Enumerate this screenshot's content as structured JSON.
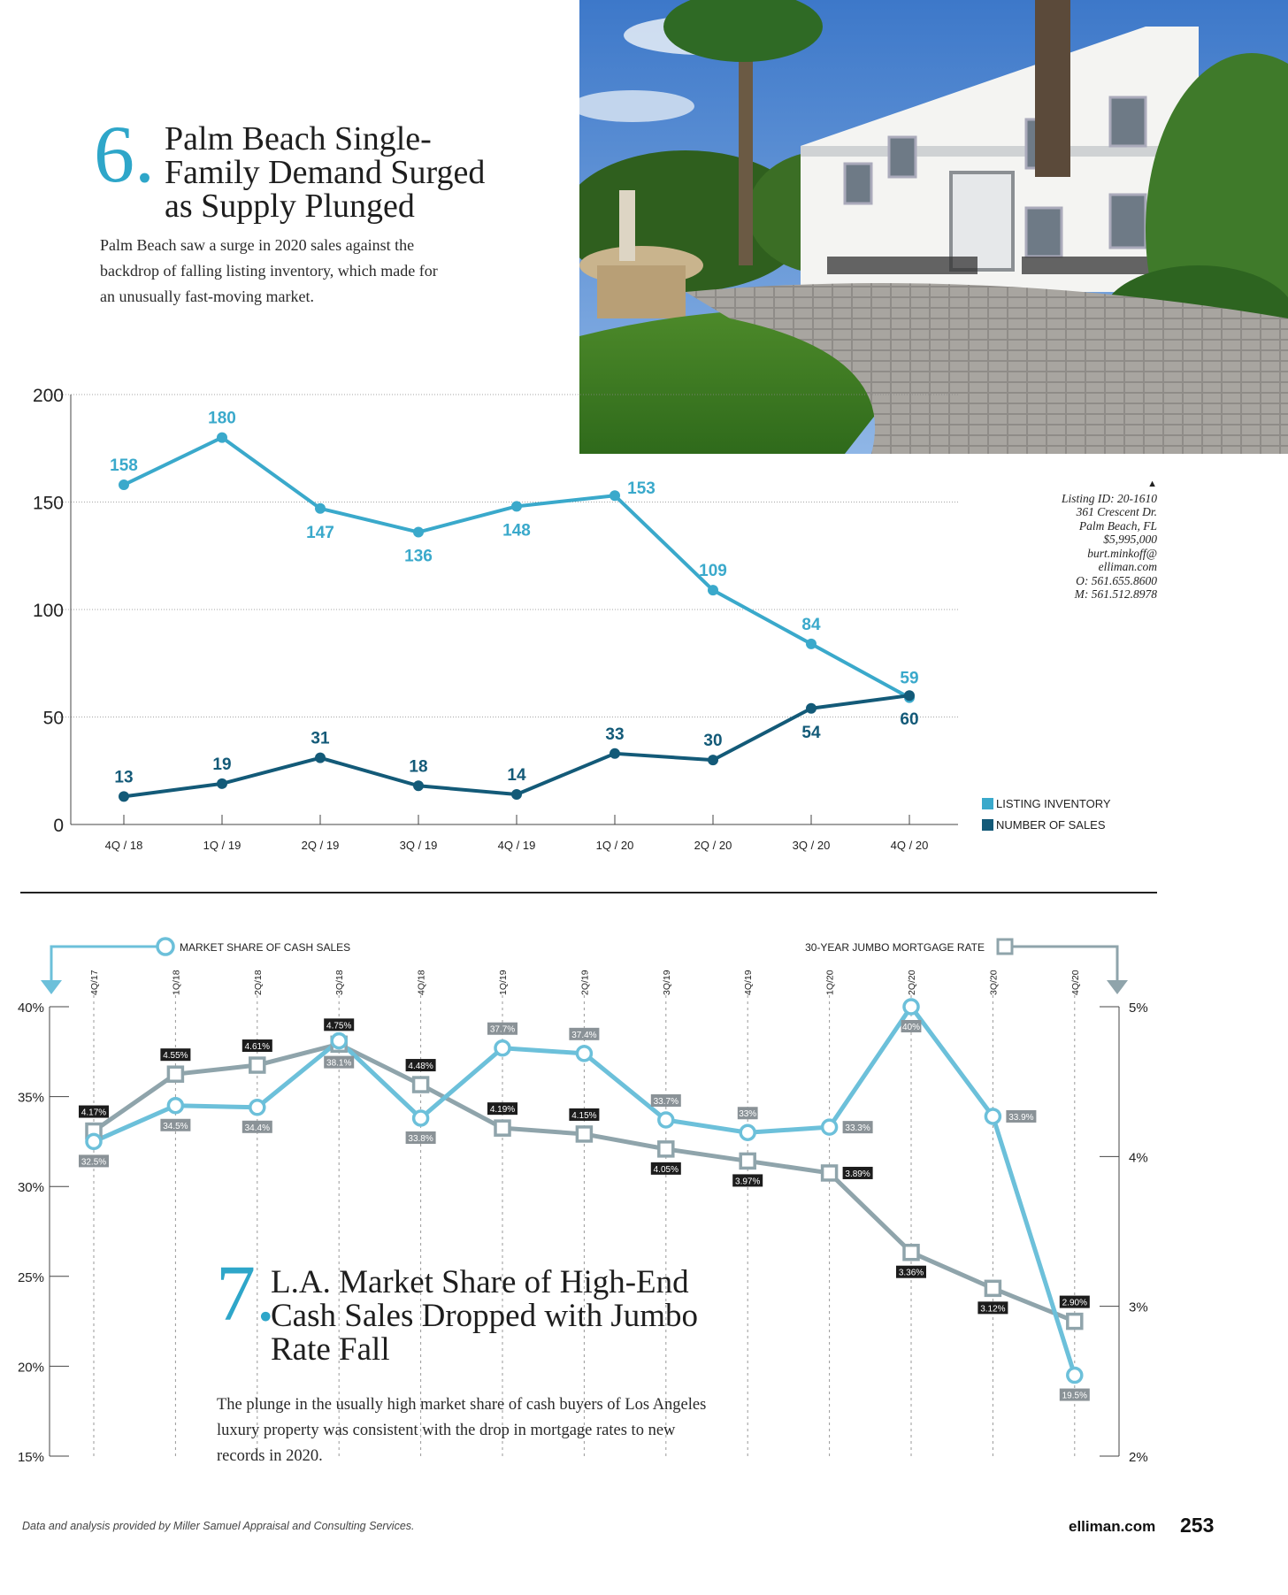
{
  "section6": {
    "number": "6.",
    "title_lines": [
      "Palm Beach Single-",
      "Family Demand Surged",
      "as Supply Plunged"
    ],
    "deck_lines": [
      "Palm Beach saw a surge in 2020 sales against the",
      "backdrop of falling listing inventory, which made for",
      "an unusually fast-moving market."
    ],
    "listing": {
      "arrow": "▲",
      "lines": [
        "Listing ID: 20-1610",
        "361 Crescent Dr.",
        "Palm Beach, FL",
        "$5,995,000",
        "burt.minkoff@",
        "elliman.com",
        "O: 561.655.8600",
        "M: 561.512.8978"
      ]
    },
    "legend": [
      {
        "label": "LISTING INVENTORY",
        "color": "#3aa9cb"
      },
      {
        "label": "NUMBER OF SALES",
        "color": "#135a78"
      }
    ]
  },
  "section7": {
    "number": "7.",
    "title_lines": [
      "L.A. Market Share of High-End",
      "Cash Sales Dropped with Jumbo",
      "Rate Fall"
    ],
    "deck_lines": [
      "The plunge in the usually high market share of cash buyers of Los Angeles",
      "luxury property was consistent with the drop in mortgage rates to new",
      "records in 2020."
    ]
  },
  "footer": {
    "source": "Data and analysis provided by Miller Samuel Appraisal and Consulting Services.",
    "site": "elliman.com",
    "page": "253"
  },
  "chart_data": [
    {
      "type": "line",
      "title": "Palm Beach Single-Family Demand Surged as Supply Plunged",
      "categories": [
        "4Q / 18",
        "1Q / 19",
        "2Q / 19",
        "3Q / 19",
        "4Q / 19",
        "1Q / 20",
        "2Q / 20",
        "3Q / 20",
        "4Q / 20"
      ],
      "ylim": [
        0,
        200
      ],
      "yticks": [
        0,
        50,
        100,
        150,
        200
      ],
      "grid": true,
      "legend": "right",
      "series": [
        {
          "name": "LISTING INVENTORY",
          "color": "#3aa9cb",
          "values": [
            158,
            180,
            147,
            136,
            148,
            153,
            109,
            84,
            59
          ]
        },
        {
          "name": "NUMBER OF SALES",
          "color": "#135a78",
          "values": [
            13,
            19,
            31,
            18,
            14,
            33,
            30,
            54,
            60
          ]
        }
      ]
    },
    {
      "type": "line",
      "title": "L.A. Market Share of High-End Cash Sales Dropped with Jumbo Rate Fall",
      "categories": [
        "4Q / 17",
        "1Q / 18",
        "2Q / 18",
        "3Q / 18",
        "4Q / 18",
        "1Q / 19",
        "2Q / 19",
        "3Q / 19",
        "4Q / 19",
        "1Q / 20",
        "2Q / 20",
        "3Q / 20",
        "4Q / 20"
      ],
      "y_left": {
        "ylim": [
          15,
          40
        ],
        "ticks": [
          "15%",
          "20%",
          "25%",
          "30%",
          "35%",
          "40%"
        ],
        "tick_values": [
          15,
          20,
          25,
          30,
          35,
          40
        ]
      },
      "y_right": {
        "ylim": [
          2,
          5
        ],
        "ticks": [
          "2%",
          "3%",
          "4%",
          "5%"
        ],
        "tick_values": [
          2,
          3,
          4,
          5
        ]
      },
      "series": [
        {
          "name": "MARKET SHARE OF CASH SALES",
          "axis": "left",
          "color": "#6cc0da",
          "values": [
            32.5,
            34.5,
            34.4,
            38.1,
            33.8,
            37.7,
            37.4,
            33.7,
            33,
            33.3,
            40,
            33.9,
            19.5
          ],
          "labels": [
            "32.5%",
            "34.5%",
            "34.4%",
            "38.1%",
            "33.8%",
            "37.7%",
            "37.4%",
            "33.7%",
            "33%",
            "33.3%",
            "40%",
            "33.9%",
            "19.5%"
          ]
        },
        {
          "name": "30-YEAR JUMBO MORTGAGE RATE",
          "axis": "right",
          "color": "#8fa4ab",
          "values": [
            4.17,
            4.55,
            4.61,
            4.75,
            4.48,
            4.19,
            4.15,
            4.05,
            3.97,
            3.89,
            3.36,
            3.12,
            2.9
          ],
          "labels": [
            "4.17%",
            "4.55%",
            "4.61%",
            "4.75%",
            "4.48%",
            "4.19%",
            "4.15%",
            "4.05%",
            "3.97%",
            "3.89%",
            "3.36%",
            "3.12%",
            "2.90%"
          ]
        }
      ]
    }
  ]
}
